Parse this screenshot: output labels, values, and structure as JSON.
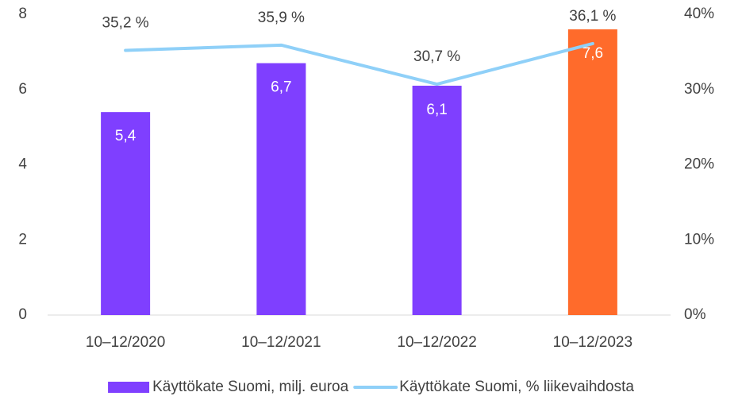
{
  "chart_data": {
    "type": "bar-line",
    "categories": [
      "10–12/2020",
      "10–12/2021",
      "10–12/2022",
      "10–12/2023"
    ],
    "series": [
      {
        "name": "Käyttökate Suomi, milj. euroa",
        "type": "bar",
        "color": "#7f3fff",
        "colors": [
          "#7f3fff",
          "#7f3fff",
          "#7f3fff",
          "#ff6b2b"
        ],
        "values": [
          5.4,
          6.7,
          6.1,
          7.6
        ],
        "value_labels": [
          "5,4",
          "6,7",
          "6,1",
          "7,6"
        ]
      },
      {
        "name": "Käyttökate Suomi, % liikevaihdosta",
        "type": "line",
        "axis": "y2",
        "color": "#8fd0f8",
        "values": [
          35.2,
          35.9,
          30.7,
          36.1
        ],
        "value_labels": [
          "35,2 %",
          "35,9 %",
          "30,7 %",
          "36,1 %"
        ]
      }
    ],
    "ylim": [
      0,
      8
    ],
    "yticks": [
      0,
      2,
      4,
      6,
      8
    ],
    "y2lim": [
      0,
      40
    ],
    "y2ticks": [
      {
        "value": 0,
        "label": "0%"
      },
      {
        "value": 10,
        "label": "10%"
      },
      {
        "value": 20,
        "label": "20%"
      },
      {
        "value": 30,
        "label": "30%"
      },
      {
        "value": 40,
        "label": "40%"
      }
    ],
    "grid": false,
    "legend": "bottom"
  }
}
